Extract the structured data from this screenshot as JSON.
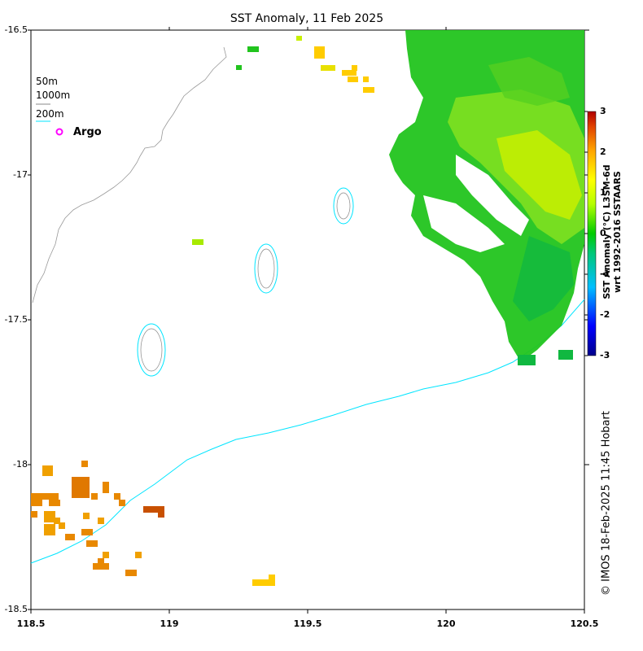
{
  "title": "SST Anomaly, 11 Feb 2025",
  "y_ticks": [
    "-16.5",
    "-17",
    "-17.5",
    "-18",
    "-18.5"
  ],
  "x_ticks": [
    "118.5",
    "119",
    "119.5",
    "120",
    "120.5"
  ],
  "legend": {
    "contour_50": "50m",
    "contour_1000": "1000m",
    "contour_200": "200m",
    "argo": "Argo",
    "argo_color": "#ff00ff",
    "contour_200_color": "#00e5ff",
    "contour_1000_color": "#888888"
  },
  "colorbar": {
    "ticks": [
      "3",
      "2",
      "1",
      "0",
      "-1",
      "-2",
      "-3"
    ],
    "label_line1": "SST Anomaly (°C) L3SM-6d",
    "label_line2": "wrt 1992-2016 SSTAARS",
    "min": -3,
    "max": 3
  },
  "credit": "© IMOS 18-Feb-2025 11:45 Hobart"
}
